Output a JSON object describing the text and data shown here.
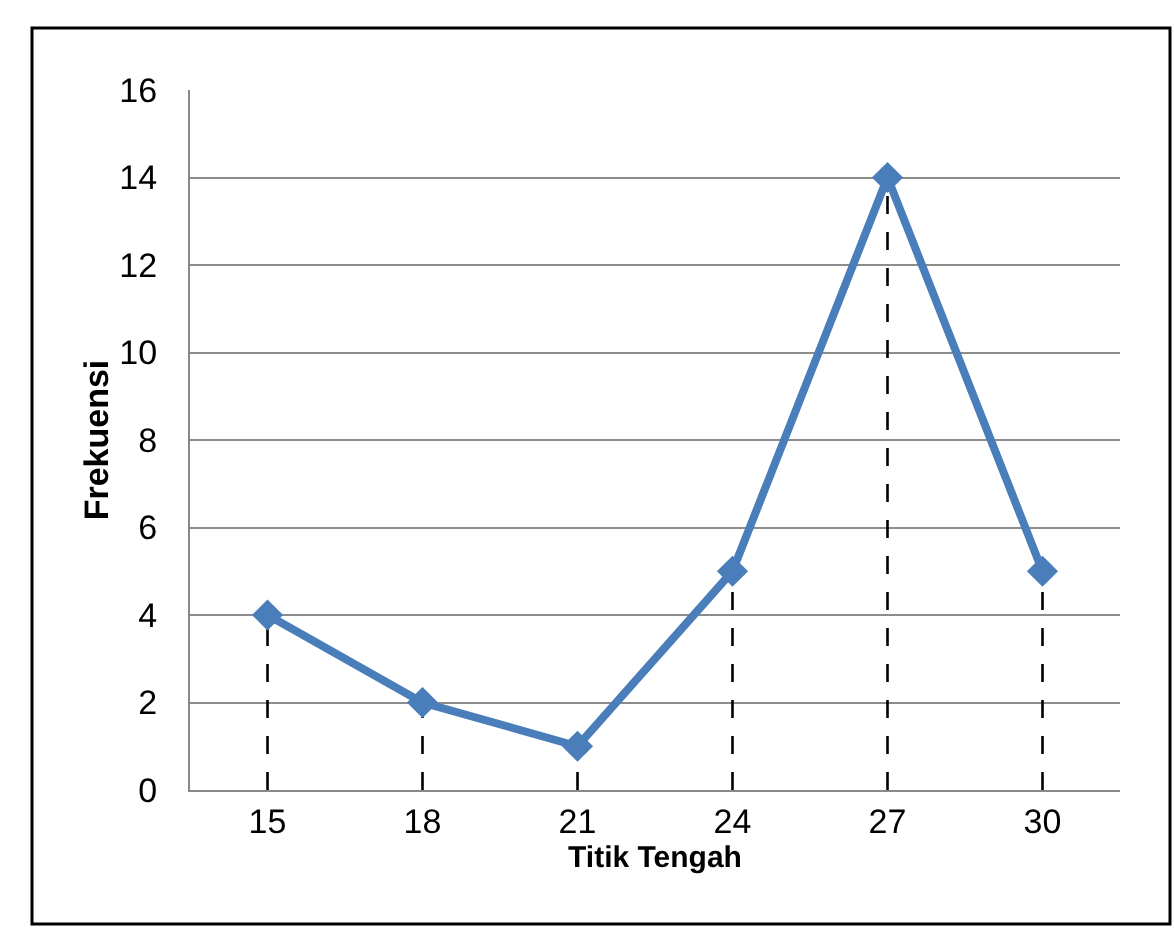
{
  "chart_data": {
    "type": "line",
    "xlabel": "Titik Tengah",
    "ylabel": "Frekuensi",
    "categories": [
      "15",
      "18",
      "21",
      "24",
      "27",
      "30"
    ],
    "series": [
      {
        "color": "#4a7ebb",
        "values": [
          4,
          2,
          1,
          5,
          14,
          5
        ],
        "errors": [
          [
            0,
            4
          ],
          [
            0,
            2
          ],
          [
            0,
            1
          ],
          [
            0,
            5
          ],
          [
            0,
            14
          ],
          [
            0,
            5
          ]
        ]
      }
    ],
    "ylim": [
      0,
      16
    ],
    "yticks": [
      0,
      2,
      4,
      6,
      8,
      10,
      12,
      14,
      16
    ],
    "grid": "y",
    "marker": "diamond",
    "line_style": "solid"
  }
}
